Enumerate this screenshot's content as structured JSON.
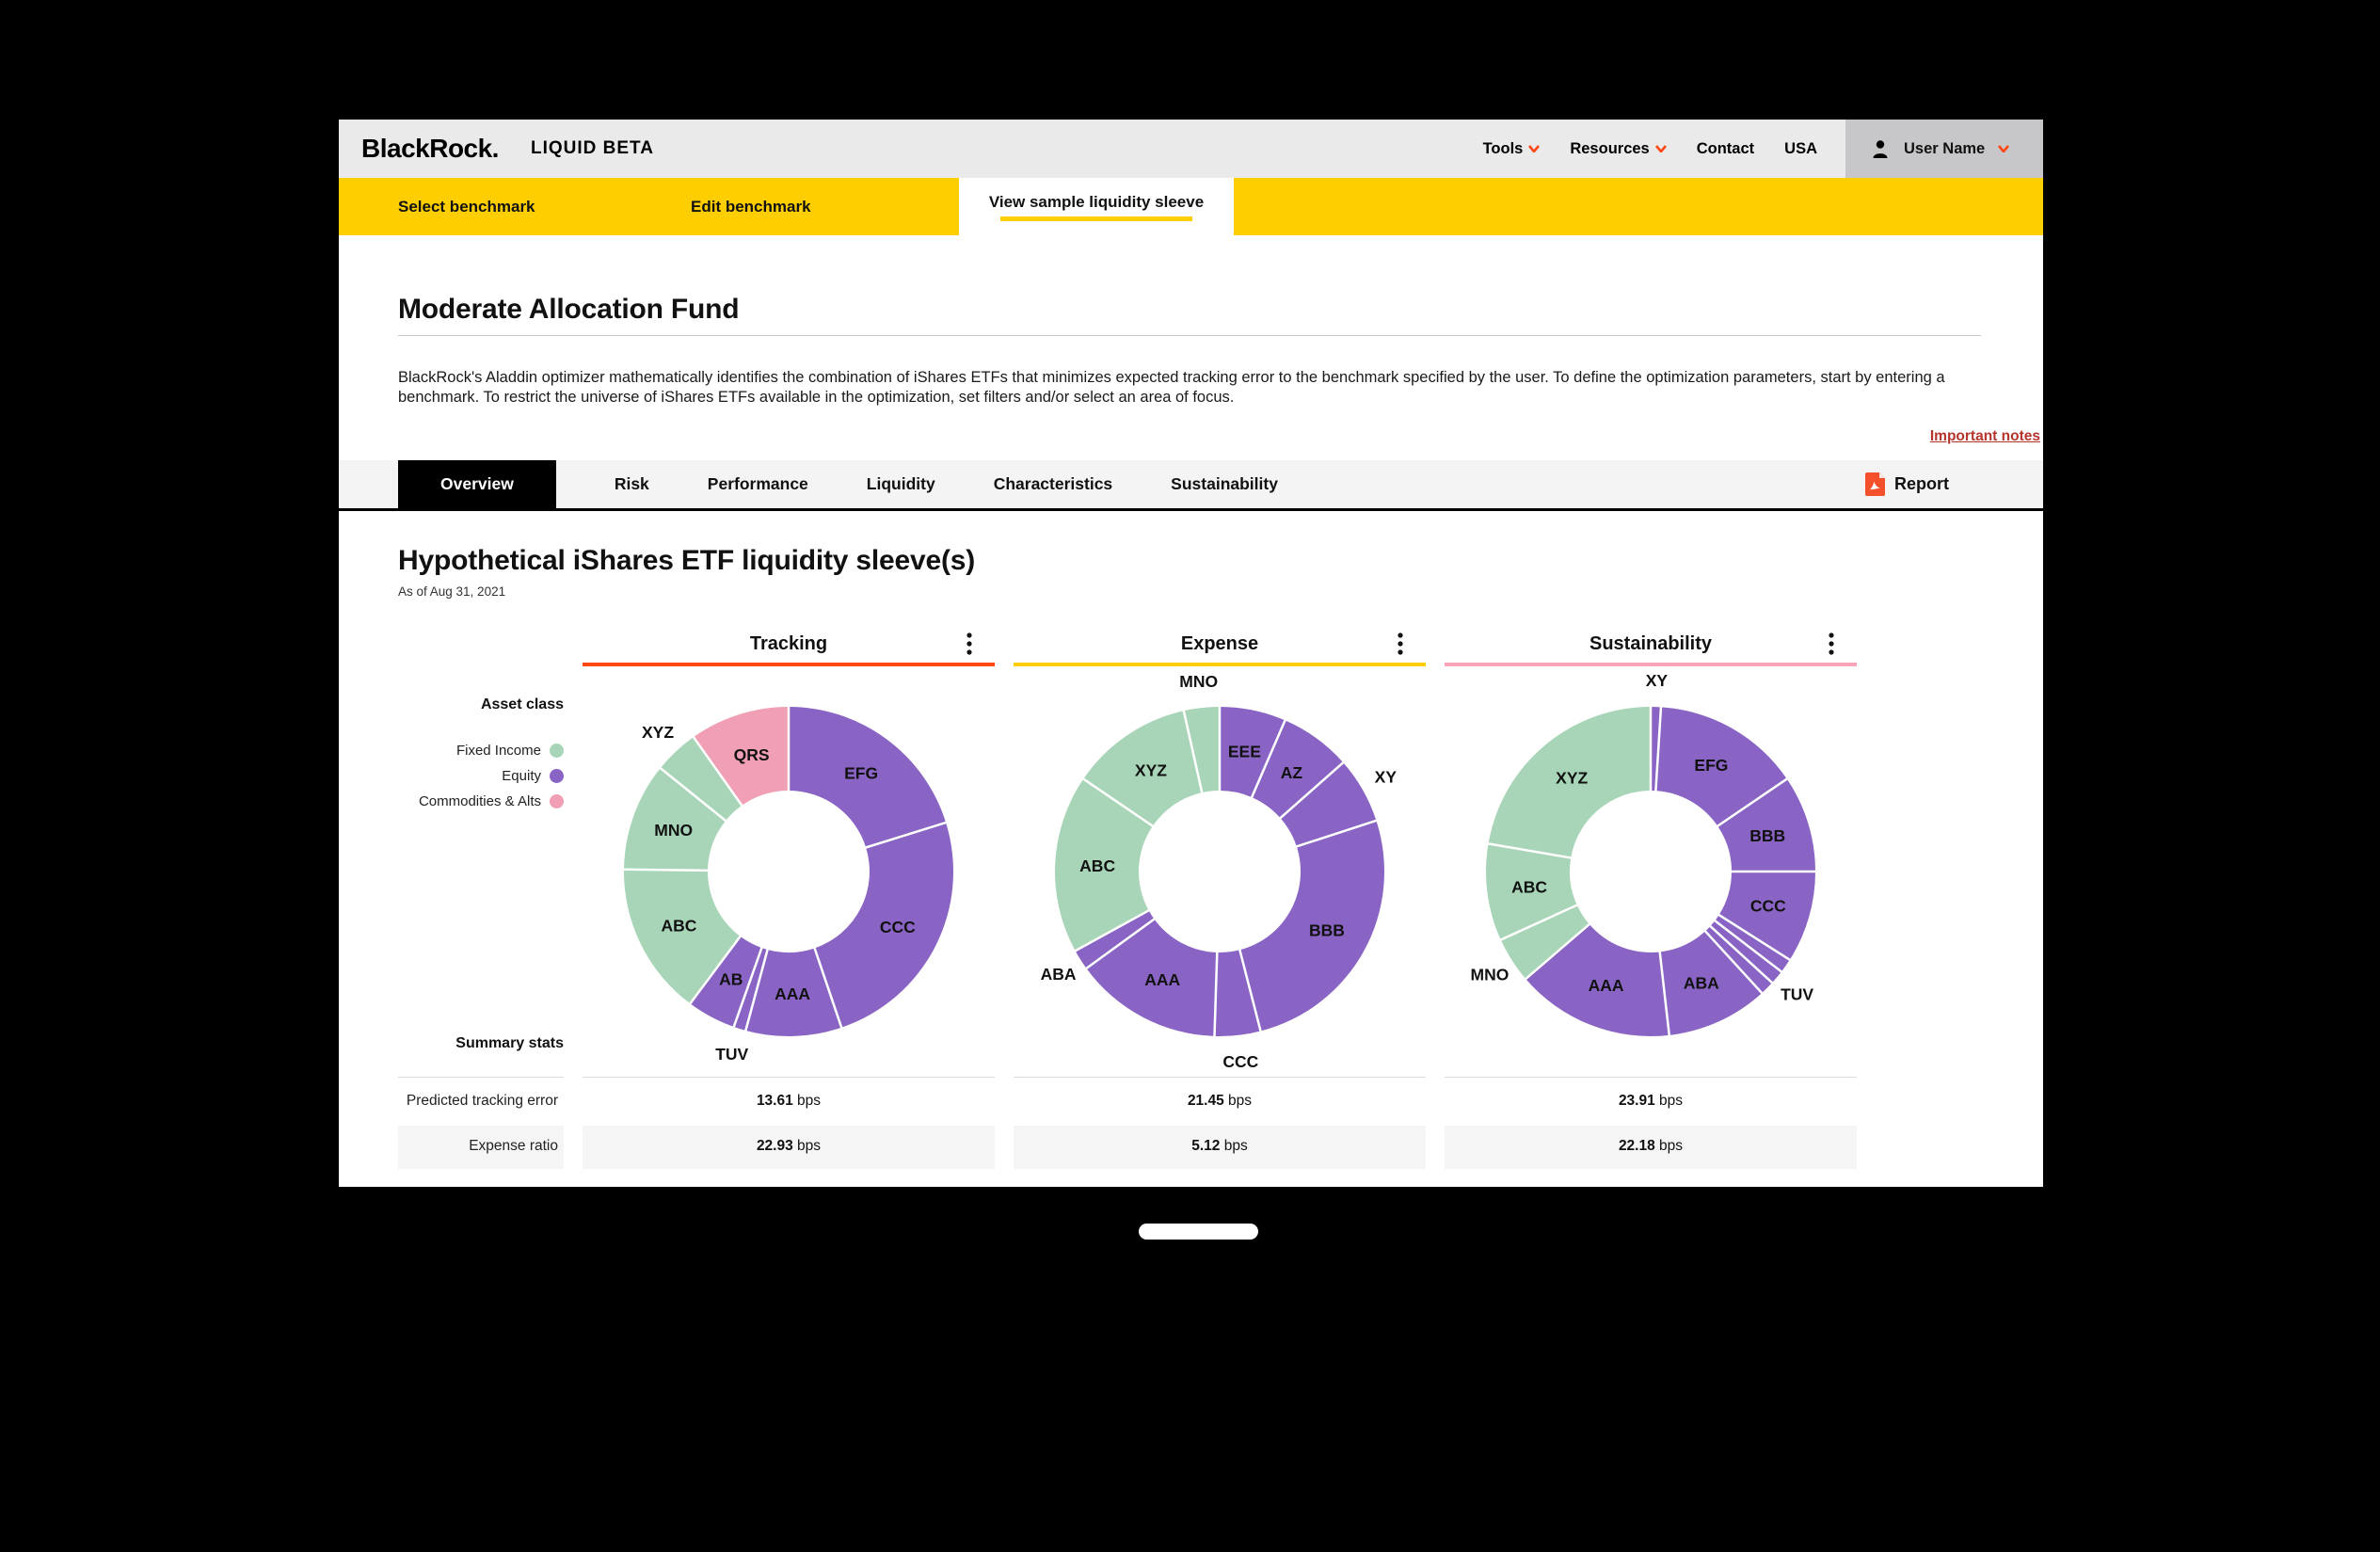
{
  "header": {
    "logo": "BlackRock.",
    "product": "LIQUID BETA",
    "nav": [
      {
        "label": "Tools",
        "chevron": true
      },
      {
        "label": "Resources",
        "chevron": true
      },
      {
        "label": "Contact",
        "chevron": false
      },
      {
        "label": "USA",
        "chevron": false
      }
    ],
    "user": {
      "label": "User Name"
    }
  },
  "benchmark_nav": {
    "items": [
      {
        "label": "Select benchmark",
        "active": false
      },
      {
        "label": "Edit benchmark",
        "active": false
      },
      {
        "label": "View sample liquidity sleeve",
        "active": true
      }
    ]
  },
  "page": {
    "title": "Moderate Allocation Fund",
    "description": "BlackRock's Aladdin optimizer mathematically identifies the combination of iShares ETFs that minimizes expected tracking error to the benchmark specified by the user. To define the optimization parameters, start by entering a benchmark. To restrict the universe of iShares ETFs available in the optimization, set filters and/or select an area of focus.",
    "important_notes": "Important notes"
  },
  "tabs": {
    "items": [
      "Overview",
      "Risk",
      "Performance",
      "Liquidity",
      "Characteristics",
      "Sustainability"
    ],
    "active": "Overview",
    "report_label": "Report"
  },
  "section": {
    "title": "Hypothetical iShares ETF liquidity sleeve(s)",
    "as_of": "As of Aug 31, 2021"
  },
  "legend": {
    "heading": "Asset class",
    "items": [
      {
        "label": "Fixed Income",
        "color": "#A8D5B8"
      },
      {
        "label": "Equity",
        "color": "#8A64C4"
      },
      {
        "label": "Commodities & Alts",
        "color": "#F09FB4"
      }
    ]
  },
  "colors": {
    "fixed_income": "#A8D5B8",
    "equity": "#8A64C4",
    "commodities_alts": "#F09FB4",
    "accent_orange": "#FF4713",
    "brand_yellow": "#FFCE00",
    "accent_pink": "#F9A3B8",
    "link_red": "#B5342C"
  },
  "summary": {
    "heading": "Summary stats",
    "rows": [
      {
        "label": "Predicted tracking error",
        "unit": "bps",
        "values": [
          "13.61",
          "21.45",
          "23.91"
        ]
      },
      {
        "label": "Expense ratio",
        "unit": "bps",
        "values": [
          "22.93",
          "5.12",
          "22.18"
        ]
      }
    ]
  },
  "chart_data": [
    {
      "type": "donut",
      "title": "Tracking",
      "accent": "#FF4713",
      "predicted_tracking_error_bps": 13.61,
      "expense_ratio_bps": 22.93,
      "segments": [
        {
          "label": "EFG",
          "asset_class": "equity",
          "pct": 20.2,
          "outside": false
        },
        {
          "label": "CCC",
          "asset_class": "equity",
          "pct": 24.6,
          "outside": false
        },
        {
          "label": "AAA",
          "asset_class": "equity",
          "pct": 9.4,
          "outside": false
        },
        {
          "label": "TUV",
          "asset_class": "equity",
          "pct": 1.2,
          "outside": true
        },
        {
          "label": "AB",
          "asset_class": "equity",
          "pct": 4.8,
          "outside": false
        },
        {
          "label": "ABC",
          "asset_class": "fixed_income",
          "pct": 15.0,
          "outside": false
        },
        {
          "label": "MNO",
          "asset_class": "fixed_income",
          "pct": 10.6,
          "outside": false
        },
        {
          "label": "XYZ",
          "asset_class": "fixed_income",
          "pct": 4.4,
          "outside": true
        },
        {
          "label": "QRS",
          "asset_class": "commodities_alts",
          "pct": 9.8,
          "outside": false
        }
      ]
    },
    {
      "type": "donut",
      "title": "Expense",
      "accent": "#FFCE00",
      "predicted_tracking_error_bps": 21.45,
      "expense_ratio_bps": 5.12,
      "segments": [
        {
          "label": "EEE",
          "asset_class": "equity",
          "pct": 6.5,
          "outside": false
        },
        {
          "label": "AZ",
          "asset_class": "equity",
          "pct": 7.0,
          "outside": false
        },
        {
          "label": "XY",
          "asset_class": "equity",
          "pct": 6.5,
          "outside": true
        },
        {
          "label": "BBB",
          "asset_class": "equity",
          "pct": 26.0,
          "outside": false
        },
        {
          "label": "CCC",
          "asset_class": "equity",
          "pct": 4.5,
          "outside": true
        },
        {
          "label": "AAA",
          "asset_class": "equity",
          "pct": 14.5,
          "outside": false
        },
        {
          "label": "ABA",
          "asset_class": "equity",
          "pct": 2.0,
          "outside": true
        },
        {
          "label": "ABC",
          "asset_class": "fixed_income",
          "pct": 17.5,
          "outside": false
        },
        {
          "label": "XYZ",
          "asset_class": "fixed_income",
          "pct": 12.0,
          "outside": false
        },
        {
          "label": "MNO",
          "asset_class": "fixed_income",
          "pct": 3.5,
          "outside": true
        }
      ]
    },
    {
      "type": "donut",
      "title": "Sustainability",
      "accent": "#F9A3B8",
      "predicted_tracking_error_bps": 23.91,
      "expense_ratio_bps": 22.18,
      "segments": [
        {
          "label": "XY",
          "asset_class": "equity",
          "pct": 1.0,
          "outside": true
        },
        {
          "label": "EFG",
          "asset_class": "equity",
          "pct": 14.5,
          "outside": false
        },
        {
          "label": "BBB",
          "asset_class": "equity",
          "pct": 9.5,
          "outside": false
        },
        {
          "label": "CCC",
          "asset_class": "equity",
          "pct": 9.0,
          "outside": false
        },
        {
          "label": "",
          "asset_class": "equity",
          "pct": 1.4,
          "outside": false
        },
        {
          "label": "TUV",
          "asset_class": "equity",
          "pct": 1.4,
          "outside": true
        },
        {
          "label": "",
          "asset_class": "equity",
          "pct": 1.4,
          "outside": false
        },
        {
          "label": "ABA",
          "asset_class": "equity",
          "pct": 10.0,
          "outside": false
        },
        {
          "label": "AAA",
          "asset_class": "equity",
          "pct": 15.5,
          "outside": false
        },
        {
          "label": "MNO",
          "asset_class": "fixed_income",
          "pct": 4.5,
          "outside": true
        },
        {
          "label": "ABC",
          "asset_class": "fixed_income",
          "pct": 9.5,
          "outside": false
        },
        {
          "label": "XYZ",
          "asset_class": "fixed_income",
          "pct": 22.3,
          "outside": false
        }
      ]
    }
  ]
}
